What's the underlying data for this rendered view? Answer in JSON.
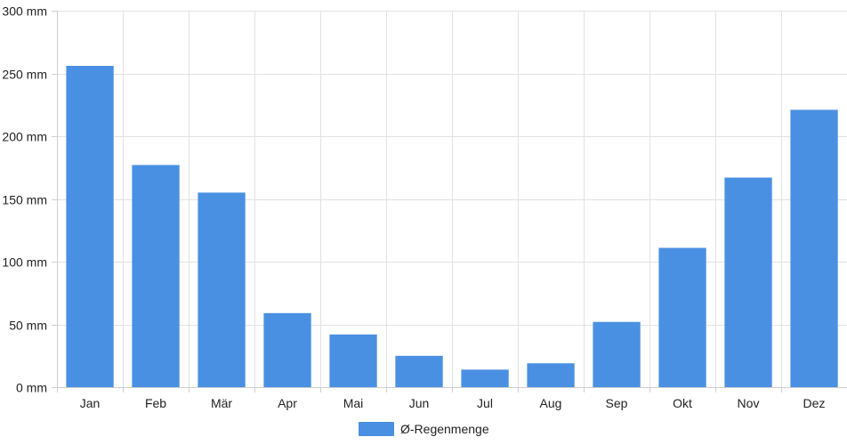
{
  "chart_data": {
    "type": "bar",
    "categories": [
      "Jan",
      "Feb",
      "Mär",
      "Apr",
      "Mai",
      "Jun",
      "Jul",
      "Aug",
      "Sep",
      "Okt",
      "Nov",
      "Dez"
    ],
    "series": [
      {
        "name": "Ø-Regenmenge",
        "values": [
          256,
          177,
          155,
          59,
          42,
          25,
          14,
          19,
          52,
          111,
          167,
          221
        ],
        "color": "#4a90e2"
      }
    ],
    "y_ticks": [
      0,
      50,
      100,
      150,
      200,
      250,
      300
    ],
    "y_unit": "mm",
    "ylim": [
      0,
      300
    ],
    "grid": true,
    "legend_position": "bottom-center",
    "xlabel": "",
    "ylabel": ""
  }
}
